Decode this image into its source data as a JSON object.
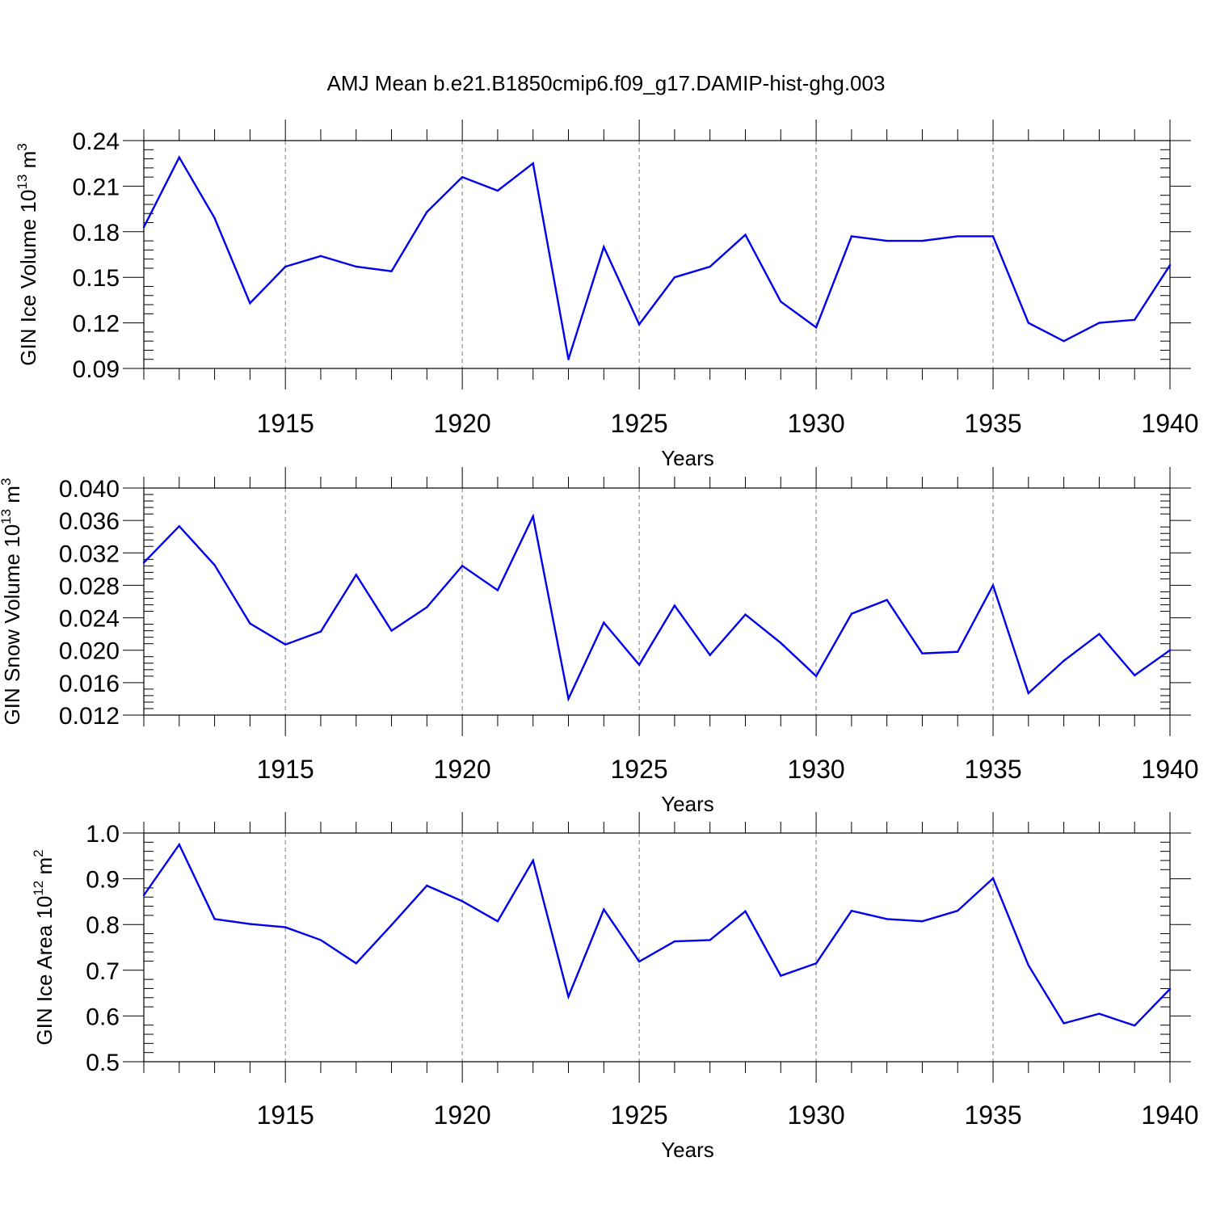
{
  "chart_data": [
    {
      "type": "line",
      "title": "AMJ Mean b.e21.B1850cmip6.f09_g17.DAMIP-hist-ghg.003",
      "ylabel": {
        "text": "GIN Ice Volume 10",
        "exp": "13",
        "unit": " m",
        "unit_exp": "3"
      },
      "xlabel": "Years",
      "xlim": [
        1911,
        1940
      ],
      "ylim": [
        0.09,
        0.24
      ],
      "yticks": [
        "0.09",
        "0.12",
        "0.15",
        "0.18",
        "0.21",
        "0.24"
      ],
      "xticks": [
        "1915",
        "1920",
        "1925",
        "1930",
        "1935",
        "1940"
      ],
      "x": [
        1911,
        1912,
        1913,
        1914,
        1915,
        1916,
        1917,
        1918,
        1919,
        1920,
        1921,
        1922,
        1923,
        1924,
        1925,
        1926,
        1927,
        1928,
        1929,
        1930,
        1931,
        1932,
        1933,
        1934,
        1935,
        1936,
        1937,
        1938,
        1939,
        1940
      ],
      "series": [
        {
          "name": "GIN Ice Volume",
          "color": "#0000ee",
          "values": [
            0.183,
            0.229,
            0.189,
            0.133,
            0.157,
            0.164,
            0.157,
            0.154,
            0.193,
            0.216,
            0.207,
            0.225,
            0.096,
            0.17,
            0.119,
            0.15,
            0.157,
            0.178,
            0.134,
            0.117,
            0.177,
            0.174,
            0.174,
            0.177,
            0.177,
            0.12,
            0.108,
            0.12,
            0.122,
            0.158
          ]
        }
      ]
    },
    {
      "type": "line",
      "ylabel": {
        "text": "GIN Snow Volume 10",
        "exp": "13",
        "unit": " m",
        "unit_exp": "3"
      },
      "xlabel": "Years",
      "xlim": [
        1911,
        1940
      ],
      "ylim": [
        0.012,
        0.04
      ],
      "yticks": [
        "0.012",
        "0.016",
        "0.020",
        "0.024",
        "0.028",
        "0.032",
        "0.036",
        "0.040"
      ],
      "xticks": [
        "1915",
        "1920",
        "1925",
        "1930",
        "1935",
        "1940"
      ],
      "x": [
        1911,
        1912,
        1913,
        1914,
        1915,
        1916,
        1917,
        1918,
        1919,
        1920,
        1921,
        1922,
        1923,
        1924,
        1925,
        1926,
        1927,
        1928,
        1929,
        1930,
        1931,
        1932,
        1933,
        1934,
        1935,
        1936,
        1937,
        1938,
        1939,
        1940
      ],
      "series": [
        {
          "name": "GIN Snow Volume",
          "color": "#0000ee",
          "values": [
            0.0308,
            0.0353,
            0.0305,
            0.0233,
            0.0207,
            0.0223,
            0.0293,
            0.0224,
            0.0253,
            0.0304,
            0.0274,
            0.0365,
            0.014,
            0.0234,
            0.0182,
            0.0255,
            0.0194,
            0.0244,
            0.0209,
            0.0168,
            0.0245,
            0.0262,
            0.0196,
            0.0198,
            0.028,
            0.0147,
            0.0187,
            0.022,
            0.0169,
            0.02
          ]
        }
      ]
    },
    {
      "type": "line",
      "ylabel": {
        "text": "GIN Ice Area 10",
        "exp": "12",
        "unit": " m",
        "unit_exp": "2"
      },
      "xlabel": "Years",
      "xlim": [
        1911,
        1940
      ],
      "ylim": [
        0.5,
        1.0
      ],
      "yticks": [
        "0.5",
        "0.6",
        "0.7",
        "0.8",
        "0.9",
        "1.0"
      ],
      "xticks": [
        "1915",
        "1920",
        "1925",
        "1930",
        "1935",
        "1940"
      ],
      "x": [
        1911,
        1912,
        1913,
        1914,
        1915,
        1916,
        1917,
        1918,
        1919,
        1920,
        1921,
        1922,
        1923,
        1924,
        1925,
        1926,
        1927,
        1928,
        1929,
        1930,
        1931,
        1932,
        1933,
        1934,
        1935,
        1936,
        1937,
        1938,
        1939,
        1940
      ],
      "series": [
        {
          "name": "GIN Ice Area",
          "color": "#0000ee",
          "values": [
            0.864,
            0.975,
            0.812,
            0.801,
            0.794,
            0.766,
            0.715,
            0.799,
            0.885,
            0.851,
            0.807,
            0.94,
            0.642,
            0.833,
            0.719,
            0.763,
            0.766,
            0.829,
            0.688,
            0.715,
            0.83,
            0.812,
            0.807,
            0.83,
            0.901,
            0.711,
            0.584,
            0.605,
            0.579,
            0.659
          ]
        }
      ]
    }
  ]
}
